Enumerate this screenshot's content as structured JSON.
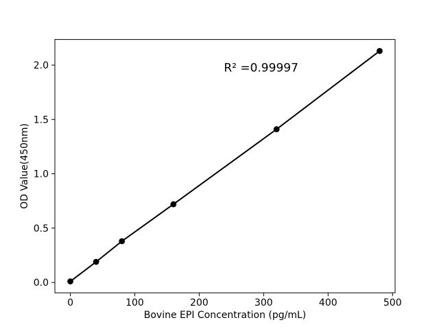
{
  "figure": {
    "background": "#ffffff"
  },
  "chart_data": {
    "type": "line",
    "x": [
      0,
      40,
      80,
      160,
      320,
      480
    ],
    "y": [
      0.01,
      0.19,
      0.38,
      0.72,
      1.41,
      2.13
    ],
    "xlabel": "Bovine EPI Concentration (pg/mL)",
    "ylabel": "OD Value(450nm)",
    "xticks": [
      0,
      100,
      200,
      300,
      400,
      500
    ],
    "xtick_labels": [
      "0",
      "100",
      "200",
      "300",
      "400",
      "500"
    ],
    "ytick_labels": [
      "0.0",
      "0.5",
      "1.0",
      "1.5",
      "2.0"
    ],
    "xlim": [
      -24,
      504
    ],
    "ylim": [
      -0.095,
      2.236
    ],
    "grid": false,
    "legend_position": "none",
    "marker": "filled-circle",
    "colors": {
      "line": "#000000",
      "marker": "#000000",
      "text": "#000000",
      "axes": "#000000",
      "background": "#ffffff"
    },
    "annotation": {
      "text": "R² =0.99997",
      "x": 296,
      "y": 1.94
    }
  }
}
